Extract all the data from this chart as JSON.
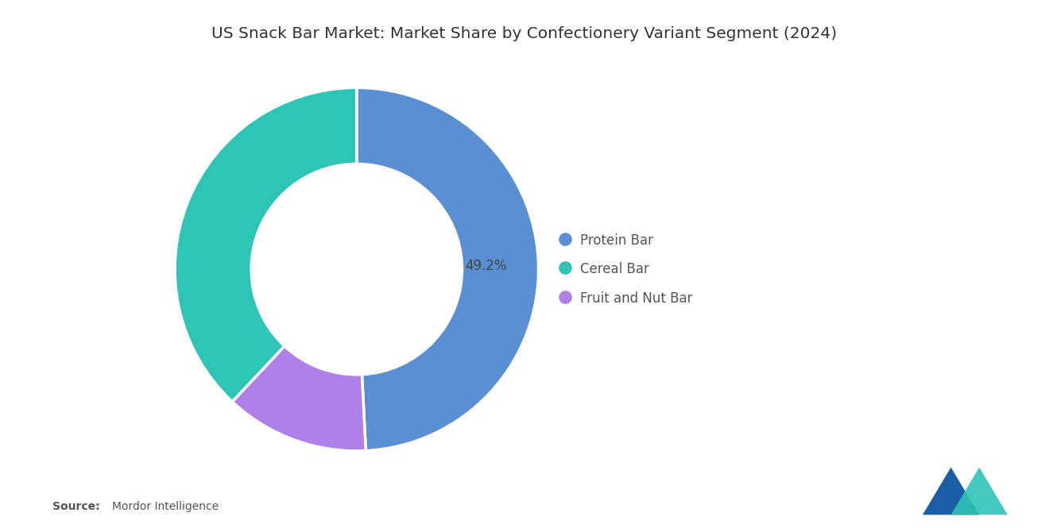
{
  "title": "US Snack Bar Market: Market Share by Confectionery Variant Segment (2024)",
  "segments": [
    "Protein Bar",
    "Cereal Bar",
    "Fruit and Nut Bar"
  ],
  "values": [
    49.2,
    38.0,
    12.8
  ],
  "pie_order_values": [
    49.2,
    12.8,
    38.0
  ],
  "pie_order_colors": [
    "#5B8FD4",
    "#B07FE8",
    "#2EC4B6"
  ],
  "legend_colors": [
    "#5B8FD4",
    "#2EC4B6",
    "#B07FE8"
  ],
  "label_text": "49.2%",
  "source_bold": "Source:",
  "source_text": "Mordor Intelligence",
  "background_color": "#FFFFFF",
  "title_fontsize": 14.5,
  "legend_fontsize": 12,
  "label_fontsize": 12,
  "source_fontsize": 10
}
